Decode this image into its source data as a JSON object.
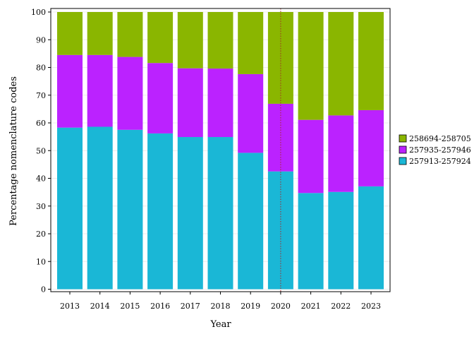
{
  "chart_data": {
    "type": "bar",
    "stacked": true,
    "categories": [
      "2013",
      "2014",
      "2015",
      "2016",
      "2017",
      "2018",
      "2019",
      "2020",
      "2021",
      "2022",
      "2023"
    ],
    "series": [
      {
        "name": "257913-257924",
        "color": "#1ab7d6",
        "values": [
          58.3,
          58.6,
          57.5,
          56.2,
          54.9,
          54.9,
          49.2,
          42.5,
          34.7,
          35.1,
          37.1
        ]
      },
      {
        "name": "257935-257946",
        "color": "#bb22ff",
        "values": [
          26.2,
          25.9,
          26.3,
          25.4,
          24.8,
          24.7,
          28.4,
          24.4,
          26.4,
          27.6,
          27.5
        ]
      },
      {
        "name": "258694-258705",
        "color": "#8ab600",
        "values": [
          15.5,
          15.5,
          16.2,
          18.4,
          20.3,
          20.4,
          22.4,
          33.1,
          38.9,
          37.3,
          35.4
        ]
      }
    ],
    "legend_order": [
      "258694-258705",
      "257935-257946",
      "257913-257924"
    ],
    "xlabel": "Year",
    "ylabel": "Percentage nomenclature codes",
    "ylim": [
      0,
      100
    ],
    "yticks": [
      0,
      10,
      20,
      30,
      40,
      50,
      60,
      70,
      80,
      90,
      100
    ],
    "grid": true,
    "legend_position": "right",
    "reference_line": {
      "x": "2020",
      "color": "#a52a2a",
      "style": "dotted"
    }
  }
}
